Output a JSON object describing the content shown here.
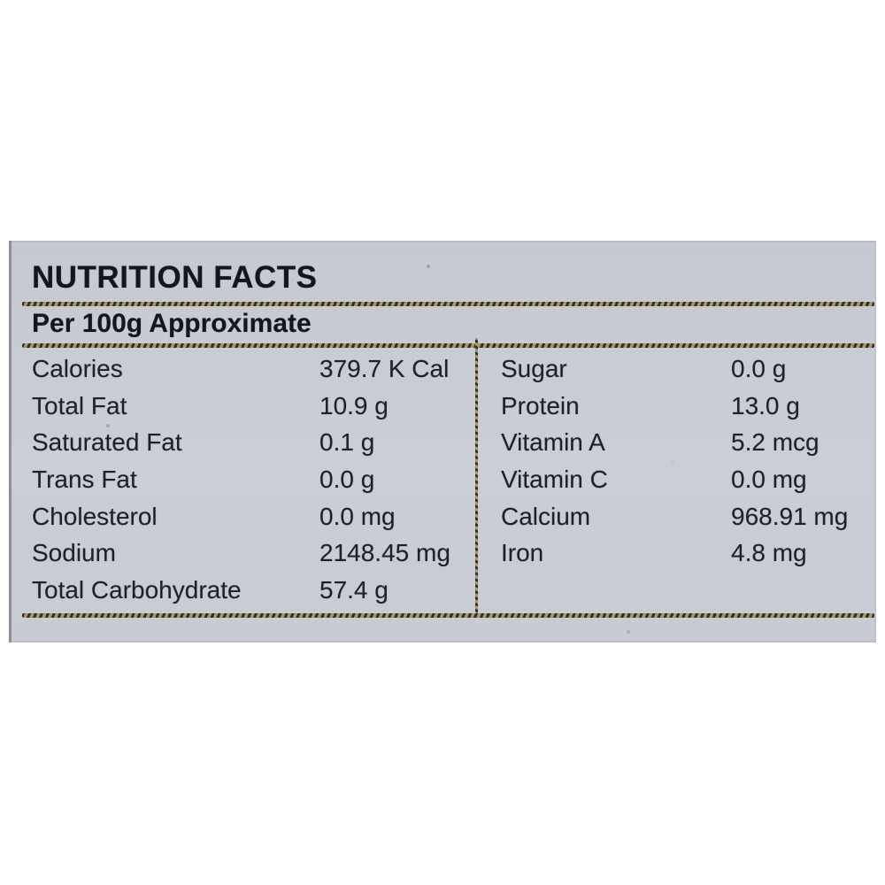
{
  "panel": {
    "title": "NUTRITION FACTS",
    "subtitle": "Per 100g Approximate",
    "left_rows": [
      {
        "label": "Calories",
        "value": "379.7 K Cal"
      },
      {
        "label": "Total Fat",
        "value": "10.9 g"
      },
      {
        "label": "Saturated Fat",
        "value": "0.1 g"
      },
      {
        "label": "Trans Fat",
        "value": "0.0 g"
      },
      {
        "label": "Cholesterol",
        "value": "0.0 mg"
      },
      {
        "label": "Sodium",
        "value": "2148.45 mg"
      },
      {
        "label": "Total Carbohydrate",
        "value": "57.4 g"
      }
    ],
    "right_rows": [
      {
        "label": "Sugar",
        "value": "0.0 g"
      },
      {
        "label": "Protein",
        "value": "13.0 g"
      },
      {
        "label": "Vitamin A",
        "value": "5.2 mcg"
      },
      {
        "label": "Vitamin C",
        "value": "0.0 mg"
      },
      {
        "label": "Calcium",
        "value": "968.91 mg"
      },
      {
        "label": "Iron",
        "value": "4.8 mg"
      }
    ],
    "colors": {
      "panel_bg": "#c9ccd4",
      "text": "#1f2028",
      "rule_dark": "#332f26",
      "rule_tan": "#a8966a"
    }
  }
}
